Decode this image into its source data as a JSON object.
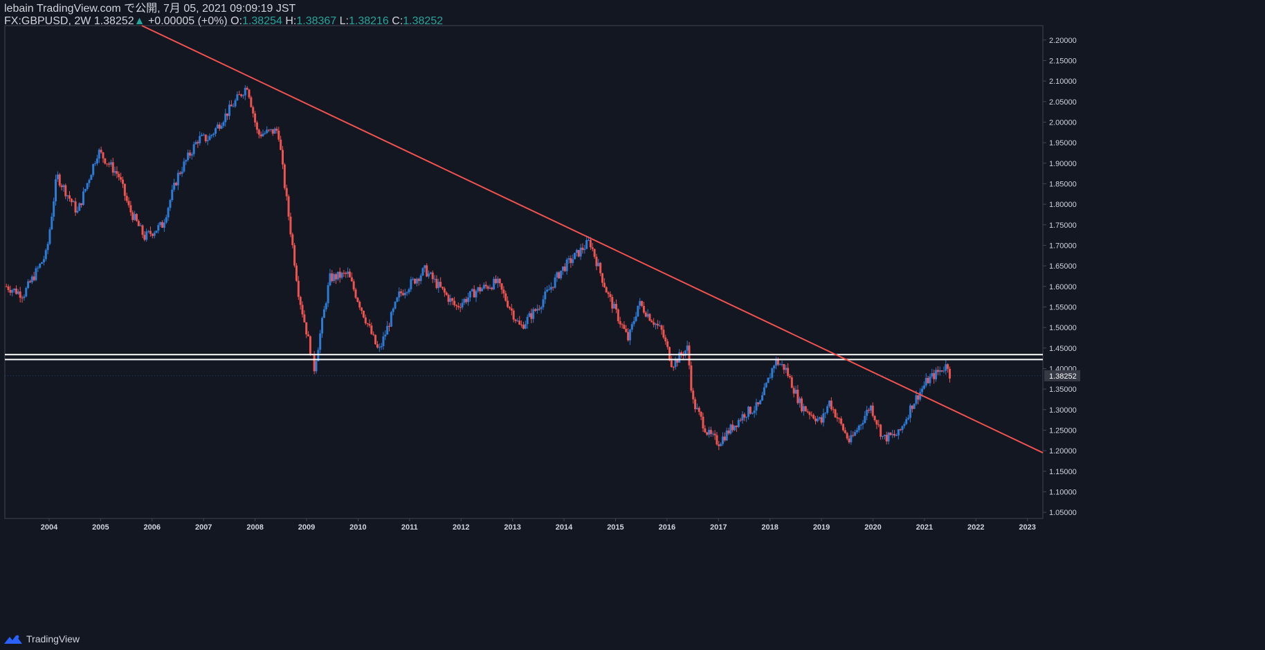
{
  "header": {
    "published_by": "lebain TradingView.com で公開, 7月 05, 2021 09:09:19 JST",
    "symbol": "FX:GBPUSD, 2W",
    "last": "1.38252",
    "change_arrow": "▲",
    "change": "+0.00005 (+0%)",
    "o_label": "O:",
    "o_value": "1.38254",
    "h_label": "H:",
    "h_value": "1.38367",
    "l_label": "L:",
    "l_value": "1.38216",
    "c_label": "C:",
    "c_value": "1.38252"
  },
  "footer": {
    "brand": "TradingView",
    "logo_icon": "tradingview-logo-icon"
  },
  "colors": {
    "background": "#131722",
    "up": "#2e7bd6",
    "down": "#ef5350",
    "trendline": "#f0524f",
    "horizontal": "#ffffff",
    "axis_text": "#d1d4dc",
    "border": "#434651"
  },
  "chart_data": {
    "type": "candlestick",
    "symbol": "FX:GBPUSD",
    "interval": "2W",
    "x_ticks": [
      "2004",
      "2005",
      "2006",
      "2007",
      "2008",
      "2009",
      "2010",
      "2011",
      "2012",
      "2013",
      "2014",
      "2015",
      "2016",
      "2017",
      "2018",
      "2019",
      "2020",
      "2021",
      "2022",
      "2023"
    ],
    "y_ticks": [
      "1.05000",
      "1.10000",
      "1.15000",
      "1.20000",
      "1.25000",
      "1.30000",
      "1.35000",
      "1.40000",
      "1.45000",
      "1.50000",
      "1.55000",
      "1.60000",
      "1.65000",
      "1.70000",
      "1.75000",
      "1.80000",
      "1.85000",
      "1.90000",
      "1.95000",
      "2.00000",
      "2.05000",
      "2.10000",
      "2.15000",
      "2.20000"
    ],
    "ylim": [
      1.035,
      2.235
    ],
    "xlim": [
      2003.14,
      2023.3
    ],
    "price_label": "1.38252",
    "price_key_points": [
      {
        "x": 2003.17,
        "y": 1.6
      },
      {
        "x": 2003.5,
        "y": 1.58
      },
      {
        "x": 2003.95,
        "y": 1.68
      },
      {
        "x": 2004.15,
        "y": 1.87
      },
      {
        "x": 2004.55,
        "y": 1.78
      },
      {
        "x": 2004.95,
        "y": 1.93
      },
      {
        "x": 2005.35,
        "y": 1.87
      },
      {
        "x": 2005.55,
        "y": 1.79
      },
      {
        "x": 2005.85,
        "y": 1.72
      },
      {
        "x": 2006.2,
        "y": 1.75
      },
      {
        "x": 2006.5,
        "y": 1.87
      },
      {
        "x": 2006.9,
        "y": 1.96
      },
      {
        "x": 2007.1,
        "y": 1.96
      },
      {
        "x": 2007.5,
        "y": 2.03
      },
      {
        "x": 2007.85,
        "y": 2.09
      },
      {
        "x": 2008.05,
        "y": 1.97
      },
      {
        "x": 2008.45,
        "y": 1.98
      },
      {
        "x": 2008.55,
        "y": 1.87
      },
      {
        "x": 2008.85,
        "y": 1.58
      },
      {
        "x": 2009.15,
        "y": 1.4
      },
      {
        "x": 2009.45,
        "y": 1.62
      },
      {
        "x": 2009.8,
        "y": 1.63
      },
      {
        "x": 2010.4,
        "y": 1.44
      },
      {
        "x": 2010.8,
        "y": 1.58
      },
      {
        "x": 2011.3,
        "y": 1.64
      },
      {
        "x": 2011.9,
        "y": 1.55
      },
      {
        "x": 2012.3,
        "y": 1.59
      },
      {
        "x": 2012.7,
        "y": 1.61
      },
      {
        "x": 2013.15,
        "y": 1.5
      },
      {
        "x": 2013.5,
        "y": 1.55
      },
      {
        "x": 2013.95,
        "y": 1.64
      },
      {
        "x": 2014.5,
        "y": 1.71
      },
      {
        "x": 2014.85,
        "y": 1.58
      },
      {
        "x": 2015.25,
        "y": 1.47
      },
      {
        "x": 2015.45,
        "y": 1.56
      },
      {
        "x": 2015.9,
        "y": 1.49
      },
      {
        "x": 2016.1,
        "y": 1.41
      },
      {
        "x": 2016.4,
        "y": 1.45
      },
      {
        "x": 2016.5,
        "y": 1.32
      },
      {
        "x": 2016.8,
        "y": 1.24
      },
      {
        "x": 2017.0,
        "y": 1.22
      },
      {
        "x": 2017.5,
        "y": 1.29
      },
      {
        "x": 2017.8,
        "y": 1.31
      },
      {
        "x": 2018.1,
        "y": 1.42
      },
      {
        "x": 2018.3,
        "y": 1.4
      },
      {
        "x": 2018.6,
        "y": 1.31
      },
      {
        "x": 2019.0,
        "y": 1.27
      },
      {
        "x": 2019.15,
        "y": 1.32
      },
      {
        "x": 2019.55,
        "y": 1.22
      },
      {
        "x": 2019.95,
        "y": 1.31
      },
      {
        "x": 2020.2,
        "y": 1.23
      },
      {
        "x": 2020.5,
        "y": 1.24
      },
      {
        "x": 2020.75,
        "y": 1.31
      },
      {
        "x": 2021.05,
        "y": 1.37
      },
      {
        "x": 2021.35,
        "y": 1.4
      },
      {
        "x": 2021.45,
        "y": 1.41
      },
      {
        "x": 2021.5,
        "y": 1.3825
      }
    ],
    "annotations": {
      "trendline": {
        "x1": 2005.8,
        "y1": 2.235,
        "x2": 2023.3,
        "y2": 1.195
      },
      "horizontal_levels": [
        1.434,
        1.422
      ]
    }
  }
}
